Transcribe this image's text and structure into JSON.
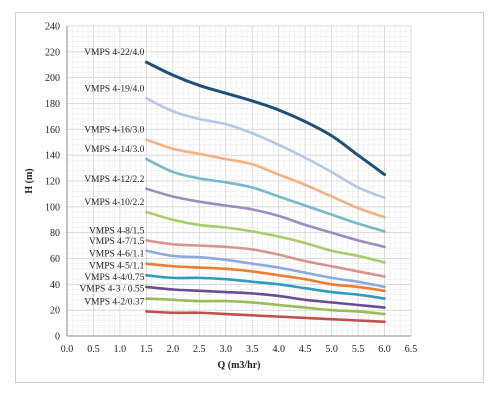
{
  "chart_data": {
    "type": "line",
    "title": "",
    "xlabel": "Q (m3/hr)",
    "ylabel": "H (m)",
    "xlim": [
      0,
      6.5
    ],
    "ylim": [
      0,
      240
    ],
    "x_ticks": [
      "0.0",
      "0.5",
      "1.0",
      "1.5",
      "2.0",
      "2.5",
      "3.0",
      "3.5",
      "4.0",
      "4.5",
      "5.0",
      "5.5",
      "6.0",
      "6.5"
    ],
    "y_ticks": [
      "0",
      "20",
      "40",
      "60",
      "80",
      "100",
      "120",
      "140",
      "160",
      "180",
      "200",
      "220",
      "240"
    ],
    "grid": true,
    "legend": "none",
    "x": [
      1.5,
      2.0,
      2.5,
      3.0,
      3.5,
      4.0,
      4.5,
      5.0,
      5.5,
      6.0
    ],
    "series": [
      {
        "name": "VMPS 4-22/4.0",
        "color": "#1f4e79",
        "values": [
          212,
          202,
          194,
          188,
          182,
          175,
          166,
          155,
          140,
          125
        ]
      },
      {
        "name": "VMPS 4-19/4.0",
        "color": "#b4c7e7",
        "values": [
          184,
          174,
          168,
          164,
          157,
          148,
          138,
          127,
          115,
          107
        ]
      },
      {
        "name": "VMPS 4-16/3.0",
        "color": "#f4b183",
        "values": [
          152,
          145,
          141,
          137,
          133,
          125,
          117,
          108,
          99,
          92
        ]
      },
      {
        "name": "VMPS 4-14/3.0",
        "color": "#77b8c9",
        "values": [
          137,
          127,
          122,
          119,
          115,
          108,
          101,
          94,
          87,
          81
        ]
      },
      {
        "name": "VMPS 4-12/2.2",
        "color": "#9e8cc0",
        "values": [
          114,
          108,
          104,
          101,
          98,
          93,
          86,
          80,
          74,
          69
        ]
      },
      {
        "name": "VMPS 4-10/2.2",
        "color": "#a9cd6a",
        "values": [
          96,
          90,
          86,
          84,
          81,
          77,
          72,
          66,
          62,
          57
        ]
      },
      {
        "name": "VMPS 4-8/1.5",
        "color": "#d79491",
        "values": [
          74,
          71,
          70,
          69,
          67,
          63,
          58,
          54,
          50,
          46
        ]
      },
      {
        "name": "VMPS 4-7/1.5",
        "color": "#8ea9db",
        "values": [
          66,
          62,
          61,
          59,
          56,
          53,
          49,
          45,
          42,
          38
        ]
      },
      {
        "name": "VMPS 4-6/1.1",
        "color": "#ed7d31",
        "values": [
          56,
          54,
          53,
          52,
          50,
          47,
          44,
          40,
          38,
          35
        ]
      },
      {
        "name": "VMPS 4-5/1.1",
        "color": "#2e9bbf",
        "values": [
          47,
          45,
          45,
          44,
          42,
          40,
          37,
          34,
          32,
          29
        ]
      },
      {
        "name": "VMPS 4-4/0.75",
        "color": "#6a4c93",
        "values": [
          38,
          36,
          35,
          34,
          33,
          31,
          28,
          26,
          24,
          22
        ]
      },
      {
        "name": "VMPS 4-3 / 0.55",
        "color": "#9bbb59",
        "values": [
          29,
          28,
          27,
          27,
          26,
          24,
          22,
          20,
          19,
          17
        ]
      },
      {
        "name": "VMPS 4-2/0.37",
        "color": "#c0504d",
        "values": [
          19,
          18,
          18,
          17,
          16,
          15,
          14,
          13,
          12,
          11
        ]
      }
    ]
  }
}
